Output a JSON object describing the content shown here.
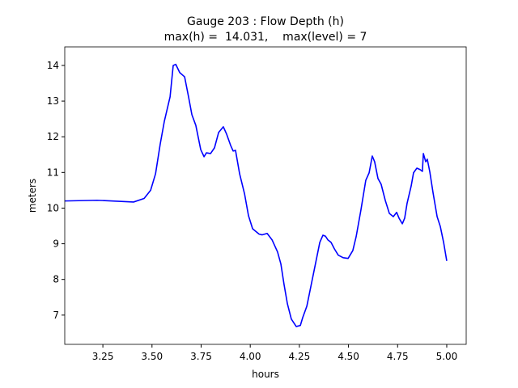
{
  "chart_data": {
    "type": "line",
    "title": "Gauge 203 : Flow Depth (h)",
    "subtitle": "max(h) =  14.031,    max(level) = 7",
    "x_label": "hours",
    "y_label": "meters",
    "color": "#0000ff",
    "xlim": [
      3.056,
      5.099
    ],
    "ylim": [
      6.18,
      14.52
    ],
    "xticks": [
      3.25,
      {
        "value": 3.5,
        "label": "3.50"
      },
      3.75,
      {
        "value": 4.0,
        "label": "4.00"
      },
      4.25,
      {
        "value": 4.5,
        "label": "4.50"
      },
      4.75,
      {
        "value": 5.0,
        "label": "5.00"
      }
    ],
    "yticks": [
      7,
      8,
      9,
      10,
      11,
      12,
      13,
      14
    ],
    "x": [
      3.056,
      3.221,
      3.406,
      3.46,
      3.493,
      3.518,
      3.542,
      3.563,
      3.592,
      3.608,
      3.621,
      3.641,
      3.666,
      3.686,
      3.703,
      3.723,
      3.748,
      3.765,
      3.777,
      3.798,
      3.818,
      3.839,
      3.863,
      3.88,
      3.9,
      3.913,
      3.925,
      3.946,
      3.971,
      3.991,
      4.012,
      4.045,
      4.061,
      4.086,
      4.111,
      4.139,
      4.156,
      4.172,
      4.189,
      4.209,
      4.234,
      4.255,
      4.267,
      4.288,
      4.308,
      4.329,
      4.354,
      4.37,
      4.383,
      4.395,
      4.411,
      4.428,
      4.448,
      4.473,
      4.498,
      4.522,
      4.539,
      4.563,
      4.588,
      4.605,
      4.621,
      4.633,
      4.65,
      4.666,
      4.687,
      4.708,
      4.728,
      4.745,
      4.757,
      4.774,
      4.786,
      4.798,
      4.819,
      4.831,
      4.848,
      4.864,
      4.876,
      4.881,
      4.893,
      4.901,
      4.914,
      4.93,
      4.951,
      4.967,
      4.984,
      5.0
    ],
    "values": [
      10.2,
      10.22,
      10.17,
      10.27,
      10.5,
      10.96,
      11.8,
      12.44,
      13.12,
      14.0,
      14.03,
      13.8,
      13.68,
      13.12,
      12.62,
      12.32,
      11.64,
      11.44,
      11.55,
      11.53,
      11.69,
      12.12,
      12.28,
      12.07,
      11.76,
      11.6,
      11.62,
      10.96,
      10.4,
      9.79,
      9.42,
      9.27,
      9.25,
      9.29,
      9.11,
      8.77,
      8.43,
      7.86,
      7.32,
      6.89,
      6.68,
      6.71,
      6.93,
      7.25,
      7.79,
      8.36,
      9.04,
      9.24,
      9.21,
      9.11,
      9.04,
      8.86,
      8.68,
      8.61,
      8.59,
      8.81,
      9.2,
      9.94,
      10.78,
      10.99,
      11.46,
      11.3,
      10.83,
      10.67,
      10.22,
      9.85,
      9.76,
      9.88,
      9.72,
      9.56,
      9.72,
      10.13,
      10.62,
      10.99,
      11.12,
      11.08,
      11.03,
      11.53,
      11.3,
      11.37,
      11.01,
      10.44,
      9.76,
      9.49,
      9.04,
      8.52
    ]
  }
}
